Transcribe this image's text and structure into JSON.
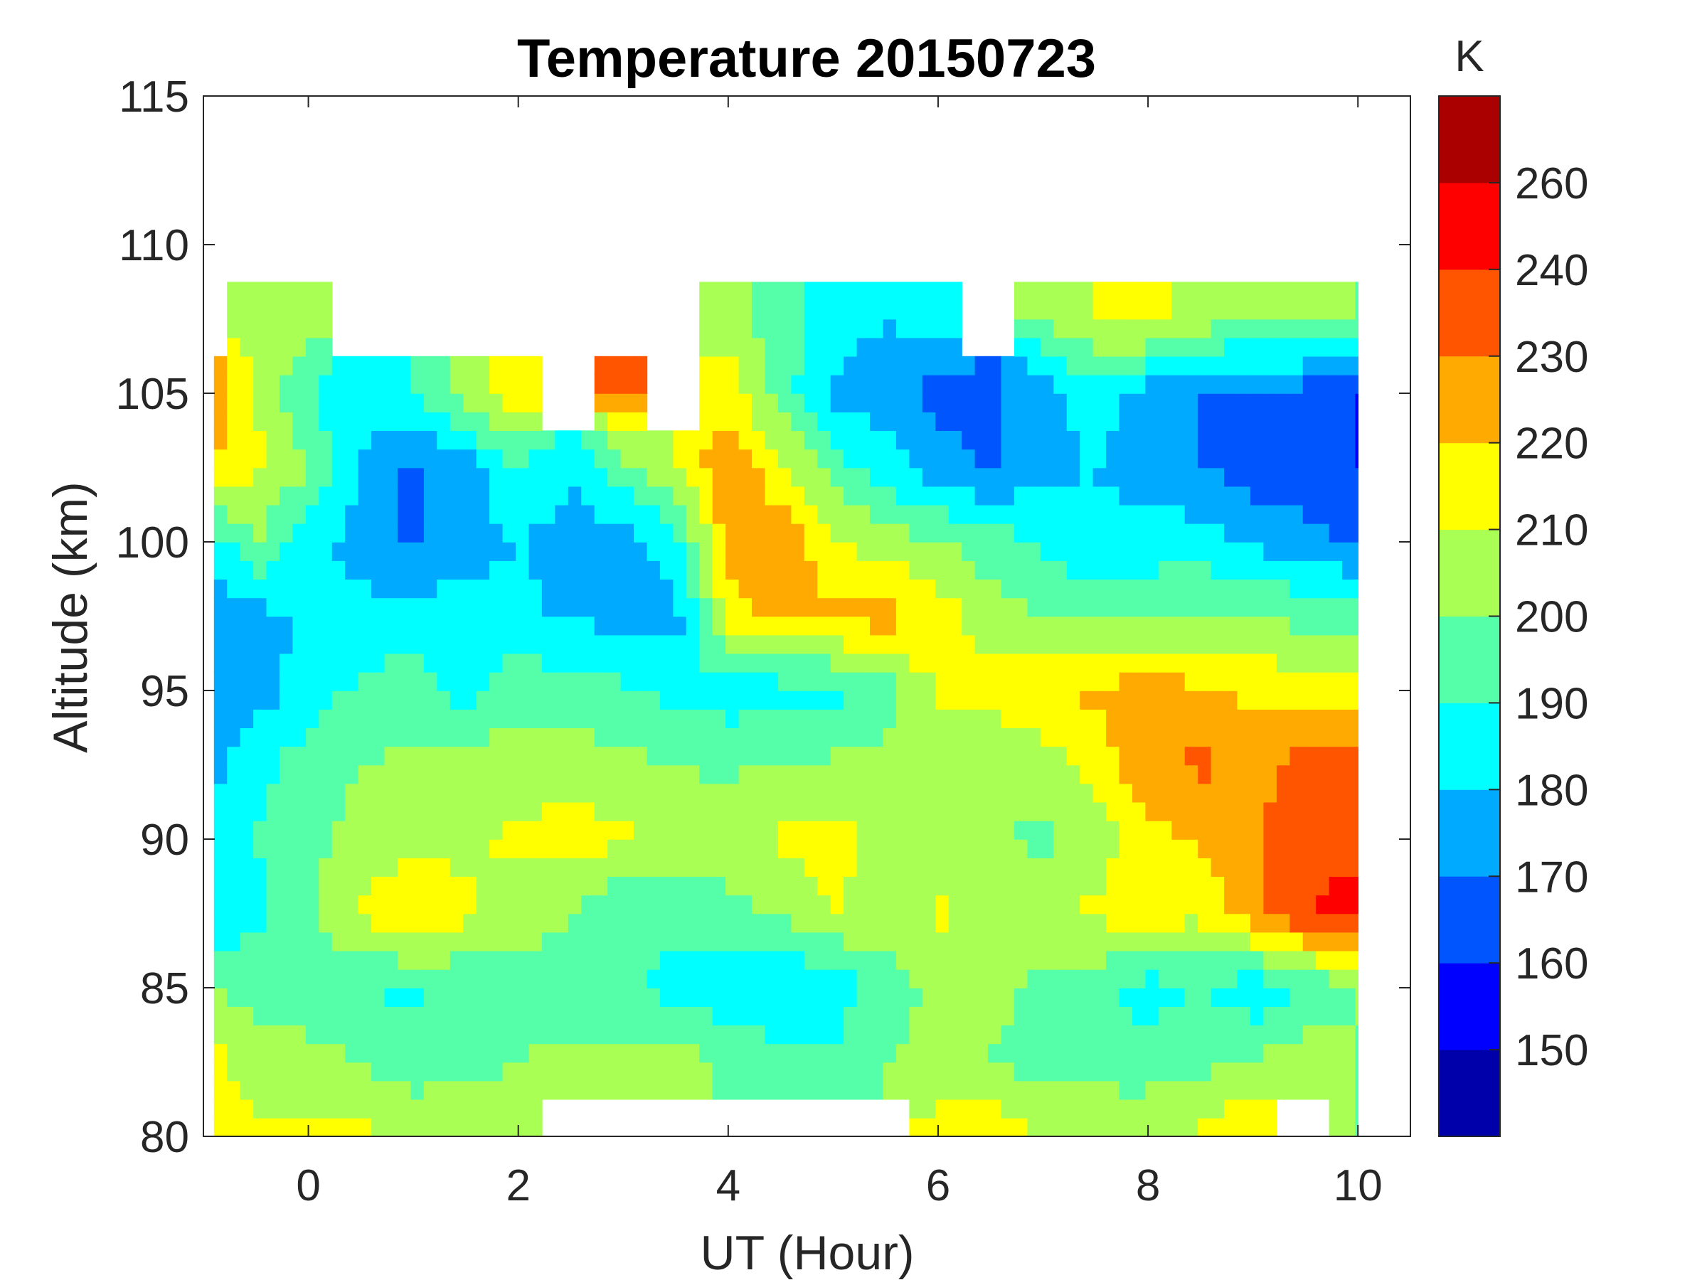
{
  "chart_data": {
    "type": "heatmap",
    "subtype": "filled-contour",
    "title": "Temperature 20150723",
    "xlabel": "UT (Hour)",
    "ylabel": "Altitude (km)",
    "colorbar_label": "K",
    "xlim": [
      -1,
      10.5
    ],
    "ylim": [
      80,
      115
    ],
    "xticks": [
      0,
      2,
      4,
      6,
      8,
      10
    ],
    "xtick_labels": [
      "0",
      "2",
      "4",
      "6",
      "8",
      "10"
    ],
    "yticks": [
      80,
      85,
      90,
      95,
      100,
      105,
      110,
      115
    ],
    "ytick_labels": [
      "80",
      "85",
      "90",
      "95",
      "100",
      "105",
      "110",
      "115"
    ],
    "levels": [
      150,
      160,
      170,
      180,
      190,
      200,
      210,
      220,
      230,
      240,
      260
    ],
    "colorbar_tick_labels": [
      "260",
      "240",
      "230",
      "220",
      "210",
      "200",
      "190",
      "180",
      "170",
      "160",
      "150"
    ],
    "colors": [
      "#0000AA",
      "#0000FF",
      "#0055FF",
      "#00AAFF",
      "#00FFFF",
      "#55FFAA",
      "#AAFF55",
      "#FFFF00",
      "#FFAA00",
      "#FF5500",
      "#FF0000",
      "#AA0000"
    ],
    "grid": false,
    "x": [
      -1,
      -0.5,
      0,
      0.5,
      1,
      1.5,
      2,
      2.5,
      3,
      3.5,
      4,
      4.5,
      5,
      5.5,
      6,
      6.5,
      7,
      7.5,
      8,
      8.5,
      9,
      9.5,
      10
    ],
    "y": [
      80,
      82.5,
      85,
      87.5,
      90,
      92.5,
      95,
      97.5,
      100,
      102.5,
      105,
      107.5,
      110
    ],
    "z": [
      [
        215,
        212,
        212,
        212,
        208,
        212,
        210,
        null,
        null,
        null,
        null,
        null,
        null,
        null,
        215,
        218,
        210,
        212,
        208,
        212,
        222,
        null,
        200
      ],
      [
        215,
        205,
        203,
        200,
        195,
        195,
        200,
        203,
        203,
        205,
        198,
        196,
        193,
        200,
        203,
        200,
        195,
        193,
        195,
        198,
        200,
        208,
        200
      ],
      [
        200,
        197,
        195,
        190,
        188,
        192,
        196,
        195,
        193,
        186,
        182,
        178,
        183,
        195,
        202,
        203,
        197,
        195,
        185,
        190,
        183,
        190,
        200
      ],
      [
        180,
        188,
        198,
        212,
        222,
        212,
        205,
        200,
        190,
        193,
        198,
        200,
        210,
        204,
        212,
        205,
        207,
        212,
        215,
        212,
        225,
        240,
        245
      ],
      [
        178,
        190,
        198,
        203,
        205,
        208,
        212,
        215,
        212,
        205,
        204,
        212,
        215,
        205,
        205,
        203,
        197,
        205,
        215,
        222,
        230,
        235,
        236
      ],
      [
        175,
        187,
        195,
        200,
        203,
        205,
        205,
        205,
        203,
        200,
        198,
        202,
        202,
        203,
        204,
        200,
        205,
        215,
        228,
        232,
        226,
        235,
        235
      ],
      [
        175,
        175,
        185,
        192,
        195,
        186,
        196,
        195,
        192,
        186,
        185,
        185,
        186,
        195,
        212,
        215,
        218,
        222,
        225,
        222,
        218,
        215,
        215
      ],
      [
        175,
        176,
        182,
        184,
        185,
        185,
        183,
        178,
        178,
        176,
        215,
        225,
        222,
        225,
        215,
        205,
        200,
        198,
        198,
        200,
        200,
        197,
        195
      ],
      [
        180,
        200,
        185,
        175,
        168,
        175,
        180,
        175,
        175,
        185,
        225,
        228,
        212,
        205,
        200,
        195,
        188,
        182,
        185,
        185,
        178,
        175,
        168
      ],
      [
        222,
        212,
        200,
        180,
        168,
        175,
        190,
        182,
        195,
        210,
        230,
        212,
        195,
        185,
        175,
        168,
        178,
        180,
        175,
        170,
        165,
        162,
        160
      ],
      [
        230,
        210,
        190,
        182,
        190,
        205,
        215,
        null,
        230,
        null,
        215,
        195,
        178,
        175,
        165,
        168,
        175,
        185,
        175,
        170,
        168,
        165,
        160
      ],
      [
        null,
        205,
        205,
        null,
        null,
        null,
        null,
        null,
        null,
        null,
        205,
        195,
        185,
        180,
        185,
        null,
        200,
        210,
        215,
        205,
        200,
        205,
        200
      ],
      [
        null,
        null,
        null,
        null,
        null,
        null,
        null,
        null,
        null,
        null,
        null,
        null,
        null,
        null,
        null,
        null,
        null,
        null,
        null,
        null,
        null,
        null,
        null
      ]
    ]
  }
}
